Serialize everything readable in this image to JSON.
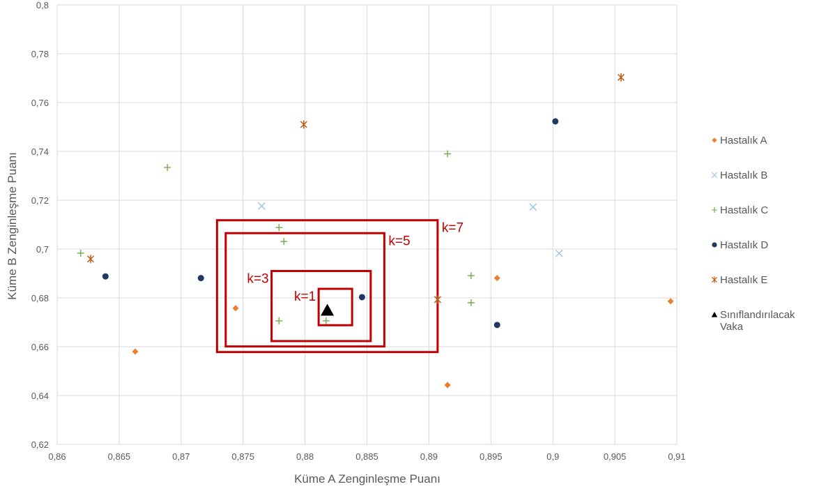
{
  "chart_data": {
    "type": "scatter",
    "title": "",
    "xlabel": "Küme A Zenginleşme Puanı",
    "ylabel": "Küme B Zenginleşme Puanı",
    "xlim": [
      0.86,
      0.91
    ],
    "ylim": [
      0.62,
      0.8
    ],
    "x_ticks": [
      "0,86",
      "0,865",
      "0,87",
      "0,875",
      "0,88",
      "0,885",
      "0,89",
      "0,895",
      "0,9",
      "0,905",
      "0,91"
    ],
    "y_ticks": [
      "0,62",
      "0,64",
      "0,66",
      "0,68",
      "0,7",
      "0,72",
      "0,74",
      "0,76",
      "0,78",
      "0,8"
    ],
    "grid": true,
    "legend_position": "right",
    "series": [
      {
        "name": "Hastalık A",
        "marker": "diamond",
        "color": "#ed7d31",
        "points": [
          [
            0.8663,
            0.658
          ],
          [
            0.8744,
            0.6758
          ],
          [
            0.8915,
            0.6443
          ],
          [
            0.8955,
            0.6881
          ],
          [
            0.9095,
            0.6786
          ]
        ]
      },
      {
        "name": "Hastalık B",
        "marker": "x",
        "color": "#9dc3e6",
        "points": [
          [
            0.8765,
            0.7176
          ],
          [
            0.8984,
            0.7172
          ],
          [
            0.9005,
            0.6982
          ]
        ]
      },
      {
        "name": "Hastalık C",
        "marker": "plus",
        "color": "#70ad47",
        "points": [
          [
            0.8619,
            0.6983
          ],
          [
            0.8689,
            0.7334
          ],
          [
            0.8779,
            0.7088
          ],
          [
            0.8783,
            0.7031
          ],
          [
            0.8779,
            0.6706
          ],
          [
            0.8817,
            0.6706
          ],
          [
            0.8915,
            0.739
          ],
          [
            0.8934,
            0.6891
          ],
          [
            0.8934,
            0.678
          ]
        ]
      },
      {
        "name": "Hastalık D",
        "marker": "circle",
        "color": "#203864",
        "points": [
          [
            0.8639,
            0.6888
          ],
          [
            0.8716,
            0.6881
          ],
          [
            0.8846,
            0.6803
          ],
          [
            0.8955,
            0.6689
          ],
          [
            0.9002,
            0.7523
          ]
        ]
      },
      {
        "name": "Hastalık E",
        "marker": "star",
        "color": "#c55a11",
        "points": [
          [
            0.8627,
            0.6959
          ],
          [
            0.8799,
            0.751
          ],
          [
            0.8907,
            0.6793
          ],
          [
            0.9055,
            0.7703
          ]
        ]
      },
      {
        "name": "Sınıflandırılacak Vaka",
        "name_lines": [
          "Sınıflandırılacak",
          "Vaka"
        ],
        "marker": "triangle",
        "color": "#000000",
        "points": [
          [
            0.8818,
            0.675
          ]
        ]
      }
    ],
    "annotations": [
      {
        "label": "k=1",
        "x_range": [
          0.8811,
          0.8838
        ],
        "y_range": [
          0.6688,
          0.6837
        ]
      },
      {
        "label": "k=3",
        "x_range": [
          0.8773,
          0.8853
        ],
        "y_range": [
          0.6623,
          0.691
        ]
      },
      {
        "label": "k=5",
        "x_range": [
          0.8736,
          0.8864
        ],
        "y_range": [
          0.6601,
          0.7065
        ]
      },
      {
        "label": "k=7",
        "x_range": [
          0.8729,
          0.8907
        ],
        "y_range": [
          0.6578,
          0.7118
        ]
      }
    ],
    "annotation_color": "#c00000"
  }
}
